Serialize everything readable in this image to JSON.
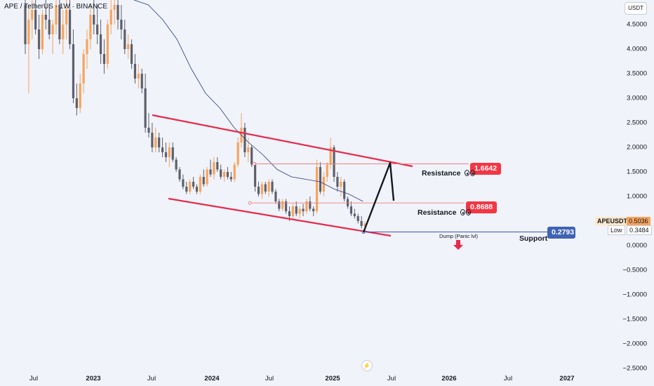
{
  "header": {
    "title": "APE / TetherUS · 1W · BINANCE",
    "currency": "USDT"
  },
  "colors": {
    "up": "#f7a35c",
    "down": "#5d606b",
    "channel": "#e8294a",
    "resistance_line": "#f08080",
    "support_line": "#3f51b5",
    "ma": "#2a3a7a",
    "arrow": "#131722",
    "resistance_badge": "#f23645",
    "support_badge": "#3f63b5"
  },
  "chart_data": {
    "type": "candlestick",
    "title": "APE / TetherUS · 1W · BINANCE",
    "y_axis": {
      "min": -2.5,
      "max": 5.0,
      "ticks": [
        "4.5000",
        "4.0000",
        "3.5000",
        "3.0000",
        "2.5000",
        "2.0000",
        "1.5000",
        "1.0000",
        "0.5000",
        "0.0000",
        "−0.5000",
        "−1.0000",
        "−1.5000",
        "−2.0000",
        "−2.5000"
      ]
    },
    "x_axis": {
      "ticks": [
        "Jul",
        "2023",
        "Jul",
        "2024",
        "Jul",
        "2025",
        "Jul",
        "2026",
        "Jul",
        "2027"
      ],
      "strong": [
        false,
        true,
        false,
        true,
        false,
        true,
        false,
        true,
        false,
        true
      ]
    },
    "series_ohlc_weekly_approx": [
      [
        4.9,
        5.0,
        3.9,
        4.1
      ],
      [
        4.1,
        4.9,
        3.1,
        4.6
      ],
      [
        4.6,
        5.0,
        4.2,
        4.8
      ],
      [
        4.8,
        5.0,
        4.3,
        4.4
      ],
      [
        4.4,
        4.7,
        3.8,
        4.0
      ],
      [
        4.0,
        4.8,
        3.9,
        4.7
      ],
      [
        4.7,
        5.0,
        4.4,
        4.6
      ],
      [
        4.6,
        4.9,
        4.2,
        4.3
      ],
      [
        4.3,
        4.6,
        3.9,
        4.5
      ],
      [
        4.5,
        5.0,
        4.3,
        4.9
      ],
      [
        4.9,
        5.0,
        4.1,
        4.2
      ],
      [
        4.2,
        4.8,
        3.9,
        4.5
      ],
      [
        4.5,
        5.0,
        4.2,
        4.8
      ],
      [
        4.8,
        5.0,
        4.0,
        4.1
      ],
      [
        4.1,
        4.4,
        2.9,
        3.0
      ],
      [
        3.0,
        3.3,
        2.65,
        2.8
      ],
      [
        2.8,
        3.5,
        2.7,
        3.3
      ],
      [
        3.3,
        4.0,
        3.1,
        3.9
      ],
      [
        3.9,
        4.4,
        3.6,
        4.2
      ],
      [
        4.2,
        4.9,
        4.0,
        4.7
      ],
      [
        4.7,
        5.0,
        4.3,
        4.5
      ],
      [
        4.5,
        4.9,
        4.1,
        4.3
      ],
      [
        4.3,
        4.6,
        3.7,
        3.9
      ],
      [
        3.9,
        4.2,
        3.5,
        3.7
      ],
      [
        3.7,
        4.6,
        3.6,
        4.5
      ],
      [
        4.5,
        5.0,
        4.3,
        4.8
      ],
      [
        4.8,
        5.0,
        4.5,
        4.9
      ],
      [
        4.9,
        5.0,
        4.4,
        4.6
      ],
      [
        4.6,
        4.9,
        4.2,
        4.4
      ],
      [
        4.4,
        4.6,
        3.9,
        4.0
      ],
      [
        4.0,
        4.3,
        3.8,
        4.1
      ],
      [
        4.1,
        4.2,
        3.6,
        3.7
      ],
      [
        3.7,
        3.9,
        3.3,
        3.4
      ],
      [
        3.4,
        3.7,
        3.2,
        3.5
      ],
      [
        3.5,
        3.6,
        3.1,
        3.2
      ],
      [
        3.2,
        3.5,
        2.3,
        2.4
      ],
      [
        2.4,
        2.7,
        2.2,
        2.3
      ],
      [
        2.3,
        2.5,
        1.9,
        2.0
      ],
      [
        2.0,
        2.4,
        1.9,
        2.2
      ],
      [
        2.2,
        2.3,
        1.9,
        2.0
      ],
      [
        2.0,
        2.2,
        1.8,
        1.9
      ],
      [
        1.9,
        2.1,
        1.7,
        1.8
      ],
      [
        1.8,
        2.1,
        1.6,
        2.0
      ],
      [
        2.0,
        2.1,
        1.7,
        1.75
      ],
      [
        1.75,
        1.8,
        1.5,
        1.55
      ],
      [
        1.55,
        1.6,
        1.3,
        1.35
      ],
      [
        1.35,
        1.45,
        1.15,
        1.2
      ],
      [
        1.2,
        1.3,
        1.05,
        1.1
      ],
      [
        1.1,
        1.35,
        1.05,
        1.3
      ],
      [
        1.3,
        1.4,
        1.15,
        1.2
      ],
      [
        1.2,
        1.25,
        1.05,
        1.1
      ],
      [
        1.1,
        1.45,
        1.05,
        1.4
      ],
      [
        1.4,
        1.55,
        1.2,
        1.25
      ],
      [
        1.25,
        1.6,
        1.2,
        1.55
      ],
      [
        1.55,
        1.75,
        1.4,
        1.45
      ],
      [
        1.45,
        1.8,
        1.35,
        1.7
      ],
      [
        1.7,
        1.8,
        1.5,
        1.55
      ],
      [
        1.55,
        1.65,
        1.35,
        1.4
      ],
      [
        1.4,
        1.55,
        1.3,
        1.5
      ],
      [
        1.5,
        1.6,
        1.35,
        1.4
      ],
      [
        1.4,
        1.5,
        1.3,
        1.35
      ],
      [
        1.35,
        1.7,
        1.3,
        1.65
      ],
      [
        1.65,
        2.2,
        1.6,
        2.1
      ],
      [
        2.1,
        2.7,
        2.0,
        2.4
      ],
      [
        2.4,
        2.5,
        1.8,
        1.9
      ],
      [
        1.9,
        2.2,
        1.7,
        2.0
      ],
      [
        2.0,
        2.05,
        1.6,
        1.65
      ],
      [
        1.65,
        1.7,
        1.1,
        1.2
      ],
      [
        1.2,
        1.3,
        1.0,
        1.05
      ],
      [
        1.05,
        1.3,
        0.95,
        1.25
      ],
      [
        1.25,
        1.3,
        1.05,
        1.1
      ],
      [
        1.1,
        1.35,
        1.0,
        1.3
      ],
      [
        1.3,
        1.35,
        1.05,
        1.1
      ],
      [
        1.1,
        1.15,
        0.85,
        0.9
      ],
      [
        0.9,
        0.95,
        0.7,
        0.75
      ],
      [
        0.75,
        0.95,
        0.7,
        0.9
      ],
      [
        0.9,
        0.95,
        0.65,
        0.7
      ],
      [
        0.7,
        0.8,
        0.5,
        0.6
      ],
      [
        0.6,
        0.85,
        0.55,
        0.8
      ],
      [
        0.8,
        0.9,
        0.6,
        0.65
      ],
      [
        0.65,
        0.8,
        0.55,
        0.75
      ],
      [
        0.75,
        0.85,
        0.6,
        0.7
      ],
      [
        0.7,
        0.95,
        0.65,
        0.9
      ],
      [
        0.9,
        1.0,
        0.7,
        0.75
      ],
      [
        0.75,
        0.8,
        0.6,
        0.7
      ],
      [
        0.7,
        1.75,
        0.65,
        1.6
      ],
      [
        1.6,
        1.7,
        1.05,
        1.1
      ],
      [
        1.1,
        1.5,
        1.0,
        1.4
      ],
      [
        1.4,
        1.7,
        1.3,
        1.65
      ],
      [
        1.65,
        2.2,
        1.55,
        2.0
      ],
      [
        2.0,
        2.05,
        1.3,
        1.4
      ],
      [
        1.4,
        1.5,
        1.1,
        1.2
      ],
      [
        1.2,
        1.4,
        1.0,
        1.3
      ],
      [
        1.3,
        1.35,
        0.9,
        0.95
      ],
      [
        0.95,
        1.0,
        0.75,
        0.8
      ],
      [
        0.8,
        0.9,
        0.6,
        0.65
      ],
      [
        0.65,
        0.75,
        0.55,
        0.6
      ],
      [
        0.6,
        0.65,
        0.45,
        0.5
      ],
      [
        0.5,
        0.6,
        0.35,
        0.4
      ],
      [
        0.4,
        0.5,
        0.3,
        0.45
      ]
    ],
    "moving_average_approx": [
      [
        0,
        5.0
      ],
      [
        6,
        4.9
      ],
      [
        12,
        4.6
      ],
      [
        18,
        4.2
      ],
      [
        24,
        3.6
      ],
      [
        30,
        3.1
      ],
      [
        36,
        2.8
      ],
      [
        42,
        2.4
      ],
      [
        48,
        2.1
      ],
      [
        54,
        1.85
      ],
      [
        60,
        1.55
      ],
      [
        66,
        1.4
      ],
      [
        72,
        1.35
      ],
      [
        78,
        1.3
      ],
      [
        84,
        1.15
      ],
      [
        90,
        1.05
      ],
      [
        96,
        0.9
      ]
    ],
    "annotations": {
      "resistance_1": {
        "value": "1.6642",
        "label": "Resistance"
      },
      "resistance_2": {
        "value": "0.8688",
        "label": "Resistance"
      },
      "support": {
        "value": "0.2793",
        "label": "Support"
      },
      "dump_label": "Dump (Panic lvl)",
      "current_symbol": "APEUSDT",
      "current_price": "0.5036",
      "low_label": "Low",
      "low_price": "0.3484"
    }
  }
}
